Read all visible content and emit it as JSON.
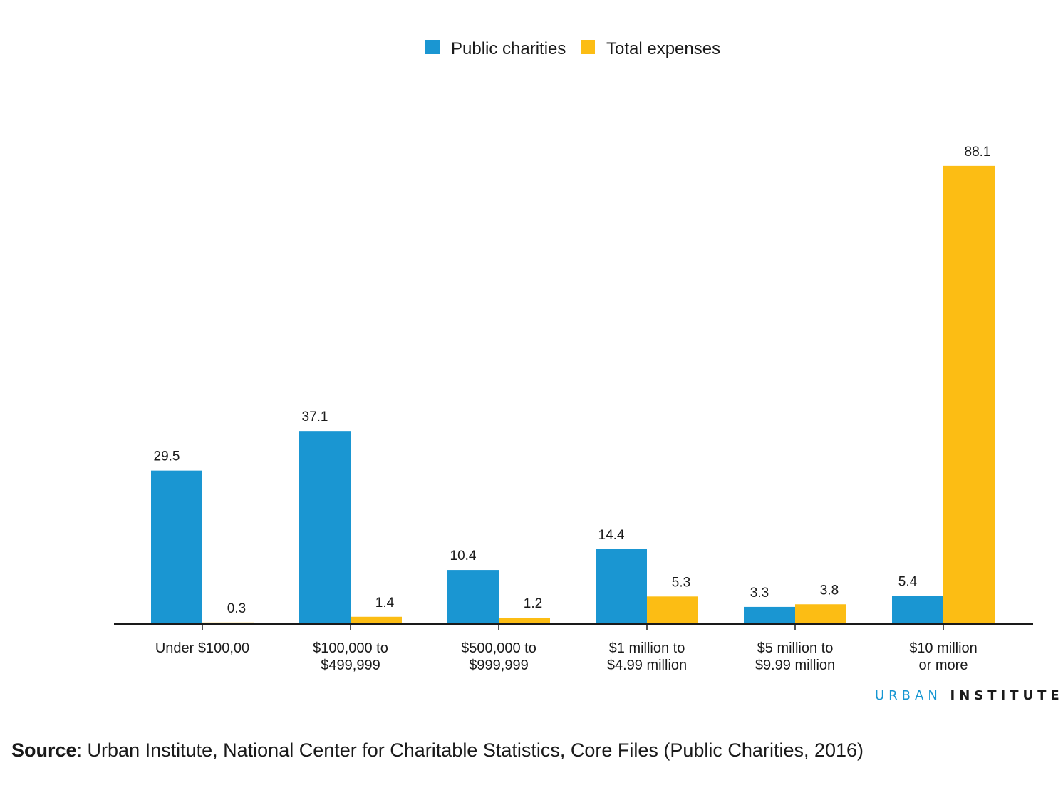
{
  "chart_data": {
    "type": "bar",
    "categories": [
      [
        "Under $100,00"
      ],
      [
        "$100,000 to",
        "$499,999"
      ],
      [
        "$500,000 to",
        "$999,999"
      ],
      [
        "$1 million to",
        "$4.99 million"
      ],
      [
        "$5 million to",
        "$9.99 million"
      ],
      [
        "$10 million",
        "or more"
      ]
    ],
    "series": [
      {
        "name": "Public charities",
        "color": "#1a96d2",
        "values": [
          29.5,
          37.1,
          10.4,
          14.4,
          3.3,
          5.4
        ],
        "labels": [
          "29.5",
          "37.1",
          "10.4",
          "14.4",
          "3.3",
          "5.4"
        ]
      },
      {
        "name": "Total expenses",
        "color": "#fcbd14",
        "values": [
          0.3,
          1.4,
          1.2,
          5.3,
          3.8,
          88.1
        ],
        "labels": [
          "0.3",
          "1.4",
          "1.2",
          "5.3",
          "3.8",
          "88.1"
        ]
      }
    ],
    "ylim": [
      0,
      100
    ],
    "legend_position": "top-center",
    "grid": false
  },
  "branding": {
    "part1": "URBAN",
    "part2": "INSTITUTE"
  },
  "source": {
    "label": "Source",
    "text": ": Urban Institute, National Center for Charitable Statistics, Core Files (Public Charities, 2016)"
  }
}
